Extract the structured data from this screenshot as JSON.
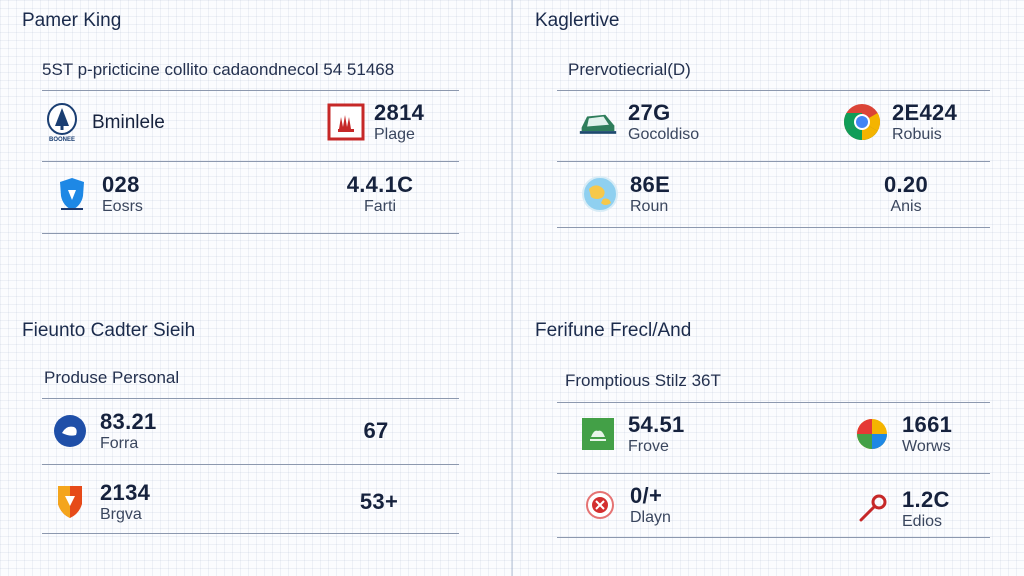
{
  "colors": {
    "text": "#16223d",
    "rule": "#8c98ae",
    "chrome_red": "#db4437",
    "chrome_yellow": "#f4b400",
    "chrome_green": "#0f9d58",
    "chrome_blue": "#4285f4"
  },
  "panels": {
    "p1": {
      "title": "Pamer King",
      "subtitle": "5ST p-pricticine collito cadaondnecol 54 51468",
      "r1a": {
        "name": "Bminlele",
        "icon": "tree-emblem-icon",
        "icon_caption": "BOONEE"
      },
      "r1b": {
        "value": "2814",
        "label": "Plage",
        "icon": "red-hand-icon"
      },
      "r2a": {
        "value": "028",
        "label": "Eosrs",
        "icon": "blue-shield-icon"
      },
      "r2b": {
        "value": "4.4.1C",
        "label": "Farti"
      }
    },
    "p2": {
      "title": "Kaglertive",
      "subtitle": "Prervotiecrial(D)",
      "r1a": {
        "value": "27G",
        "label": "Gocoldiso",
        "icon": "green-car-icon"
      },
      "r1b": {
        "value": "2E424",
        "label": "Robuis",
        "icon": "chrome-icon"
      },
      "r2a": {
        "value": "86E",
        "label": "Roun",
        "icon": "globe-icon"
      },
      "r2b": {
        "value": "0.20",
        "label": "Anis"
      }
    },
    "p3": {
      "title": "Fieunto Cadter Sieih",
      "subtitle": "Produse Personal",
      "r1a": {
        "value": "83.21",
        "label": "Forra",
        "icon": "blue-circle-icon"
      },
      "r1b": {
        "value": "67"
      },
      "r2a": {
        "value": "2134",
        "label": "Brgva",
        "icon": "orange-shield-icon"
      },
      "r2b": {
        "value": "53+"
      }
    },
    "p4": {
      "title": "Ferifune Frecl/And",
      "subtitle": "Fromptious Stilz 36T",
      "r1a": {
        "value": "54.51",
        "label": "Frove",
        "icon": "green-square-icon"
      },
      "r1b": {
        "value": "1661",
        "label": "Worws",
        "icon": "color-ball-icon"
      },
      "r2a": {
        "value": "0/+",
        "label": "Dlayn",
        "icon": "red-badge-icon"
      },
      "r2b": {
        "value": "1.2C",
        "label": "Edios",
        "icon": "pin-icon"
      }
    }
  }
}
